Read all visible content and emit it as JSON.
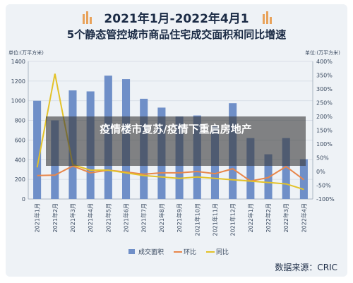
{
  "chart_data": {
    "type": "bar",
    "title_line1": "2021年1月-2022年4月1",
    "title_line2": "5个静态管控城市商品住宅成交面积和同比增速",
    "unit_left": "单位:(万平方米)",
    "unit_right": "单位:(万平方米)",
    "categories": [
      "2021年1月",
      "2021年2月",
      "2021年3月",
      "2021年4月",
      "2021年5月",
      "2021年6月",
      "2021年7月",
      "2021年8月",
      "2021年9月",
      "2021年10月",
      "2021年11月",
      "2021年12月",
      "2022年1月",
      "2022年2月",
      "2022年3月",
      "2022年4月"
    ],
    "ylim_left": [
      0,
      1400
    ],
    "yticks_left": [
      "0",
      "200",
      "400",
      "600",
      "800",
      "1000",
      "1200",
      "1400"
    ],
    "ylim_right": [
      -100,
      400
    ],
    "yticks_right": [
      "-100%",
      "-50%",
      "0%",
      "50%",
      "100%",
      "150%",
      "200%",
      "250%",
      "300%",
      "350%",
      "400%"
    ],
    "series": [
      {
        "name": "成交面积",
        "kind": "bar",
        "axis": "left",
        "color": "#6f8fc8",
        "values": [
          1000,
          800,
          1105,
          1095,
          1255,
          1220,
          1020,
          930,
          840,
          850,
          750,
          975,
          620,
          455,
          620,
          405
        ]
      },
      {
        "name": "环比",
        "kind": "line",
        "axis": "right",
        "color": "#e8864a",
        "values": [
          -15,
          -13,
          20,
          -5,
          5,
          -2,
          -10,
          -5,
          -5,
          0,
          -8,
          10,
          -35,
          -22,
          18,
          -30
        ]
      },
      {
        "name": "同比",
        "kind": "line",
        "axis": "right",
        "color": "#e3c229",
        "values": [
          15,
          355,
          25,
          5,
          5,
          -5,
          -15,
          -20,
          -25,
          -20,
          -25,
          -30,
          -35,
          -40,
          -45,
          -65
        ]
      }
    ],
    "legend_position": "bottom",
    "grid": true
  },
  "overlay": {
    "text": "疫情楼市复苏/疫情下重启房地产"
  },
  "source": {
    "text": "数据来源：CRIC"
  }
}
